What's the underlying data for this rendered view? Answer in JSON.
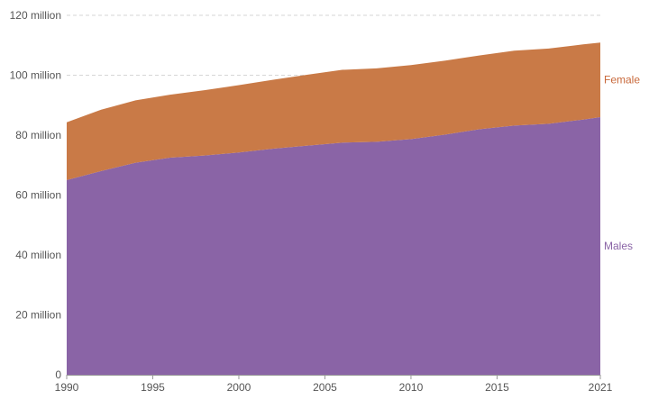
{
  "chart_data": {
    "type": "area",
    "stacked": true,
    "title": "",
    "xlabel": "",
    "ylabel": "",
    "x": [
      1990,
      1992,
      1994,
      1996,
      1998,
      2000,
      2002,
      2004,
      2006,
      2008,
      2010,
      2012,
      2014,
      2016,
      2018,
      2020,
      2021
    ],
    "series": [
      {
        "name": "Males",
        "color": "#8A64A6",
        "values": [
          65.0,
          68.0,
          70.8,
          72.5,
          73.2,
          74.2,
          75.5,
          76.5,
          77.5,
          77.8,
          78.7,
          80.2,
          82.0,
          83.2,
          83.8,
          85.2,
          86.0
        ]
      },
      {
        "name": "Female",
        "color": "#C97A47",
        "values": [
          19.3,
          20.5,
          20.8,
          21.0,
          21.8,
          22.5,
          23.0,
          23.7,
          24.3,
          24.5,
          24.7,
          24.7,
          24.6,
          25.0,
          25.1,
          25.1,
          24.9
        ]
      }
    ],
    "ylim": [
      0,
      120
    ],
    "yunit": "million",
    "yticks": [
      0,
      20,
      40,
      60,
      80,
      100,
      120
    ],
    "ytick_labels": [
      "0",
      "20 million",
      "40 million",
      "60 million",
      "80 million",
      "100 million",
      "120 million"
    ],
    "xticks": [
      1990,
      1995,
      2000,
      2005,
      2010,
      2015,
      2021
    ],
    "xtick_labels": [
      "1990",
      "1995",
      "2000",
      "2005",
      "2010",
      "2015",
      "2021"
    ],
    "xlim": [
      1990,
      2021
    ],
    "grid": "horizontal dashed",
    "legend": "inline labels at right",
    "label_colors": {
      "Males": "#8A64A6",
      "Female": "#C8683A"
    }
  }
}
